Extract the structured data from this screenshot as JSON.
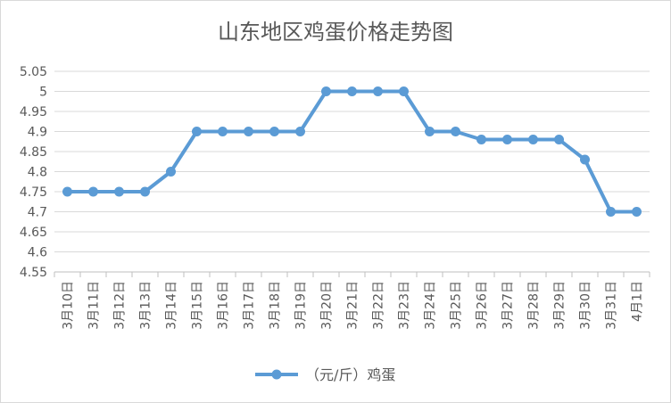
{
  "chart_data": {
    "type": "line",
    "title": "山东地区鸡蛋价格走势图",
    "xlabel": "",
    "ylabel": "",
    "categories": [
      "3月10日",
      "3月11日",
      "3月12日",
      "3月13日",
      "3月14日",
      "3月15日",
      "3月16日",
      "3月17日",
      "3月18日",
      "3月19日",
      "3月20日",
      "3月21日",
      "3月22日",
      "3月23日",
      "3月24日",
      "3月25日",
      "3月26日",
      "3月27日",
      "3月28日",
      "3月29日",
      "3月30日",
      "3月31日",
      "4月1日"
    ],
    "series": [
      {
        "name": "（元/斤）鸡蛋",
        "color": "#5b9bd5",
        "values": [
          4.75,
          4.75,
          4.75,
          4.75,
          4.8,
          4.9,
          4.9,
          4.9,
          4.9,
          4.9,
          5.0,
          5.0,
          5.0,
          5.0,
          4.9,
          4.9,
          4.88,
          4.88,
          4.88,
          4.88,
          4.83,
          4.7,
          4.7
        ]
      }
    ],
    "ylim": [
      4.55,
      5.05
    ],
    "yticks": [
      "5.05",
      "5",
      "4.95",
      "4.9",
      "4.85",
      "4.8",
      "4.75",
      "4.7",
      "4.65",
      "4.6",
      "4.55"
    ],
    "grid": true,
    "legend_position": "bottom"
  }
}
